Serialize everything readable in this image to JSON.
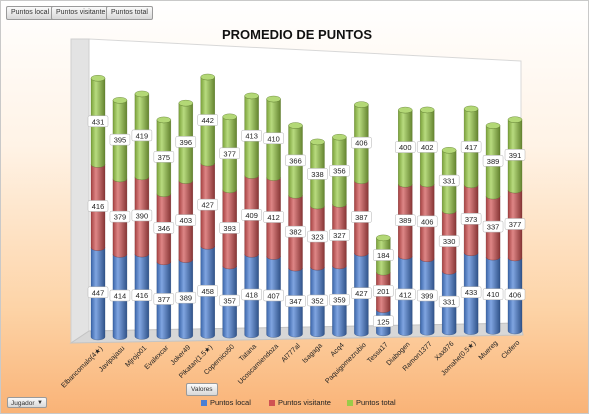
{
  "filters": {
    "field_buttons": [
      "Puntos local",
      "Puntos visitante",
      "Puntos total"
    ],
    "values_button": "Valores",
    "row_field": "Jugador"
  },
  "colors": {
    "local": "#4a7fd4",
    "visitante": "#d05252",
    "total": "#9acb48"
  },
  "chart_data": {
    "type": "bar",
    "stacked": true,
    "title": "PROMEDIO DE PUNTOS",
    "categories": [
      "Elbancomalo(4★)",
      "Javipajasu",
      "Mjrojo01",
      "Evalexcar",
      "Joker49",
      "Pikatan(1.5★)",
      "Copernico50",
      "Tatana",
      "Ucoscamiendoza",
      "Al777al",
      "Isagaga",
      "Acq4",
      "Paquigomezrubio",
      "Tessa17",
      "Diabogen",
      "Ramon1377",
      "Xax876",
      "Jomahe(0.5★)",
      "Muereg",
      "Clofero"
    ],
    "series": [
      {
        "name": "Puntos local",
        "values": [
          447,
          414,
          416,
          377,
          389,
          458,
          357,
          418,
          407,
          347,
          352,
          359,
          427,
          125,
          412,
          399,
          331,
          433,
          410,
          406
        ]
      },
      {
        "name": "Puntos visitante",
        "values": [
          416,
          379,
          390,
          346,
          403,
          427,
          393,
          409,
          412,
          382,
          323,
          327,
          387,
          201,
          389,
          406,
          330,
          373,
          337,
          377
        ]
      },
      {
        "name": "Puntos total",
        "values": [
          431,
          395,
          419,
          375,
          396,
          442,
          377,
          413,
          410,
          366,
          338,
          356,
          406,
          184,
          400,
          402,
          331,
          417,
          389,
          391
        ]
      }
    ],
    "legend_position": "bottom",
    "grid": false
  }
}
